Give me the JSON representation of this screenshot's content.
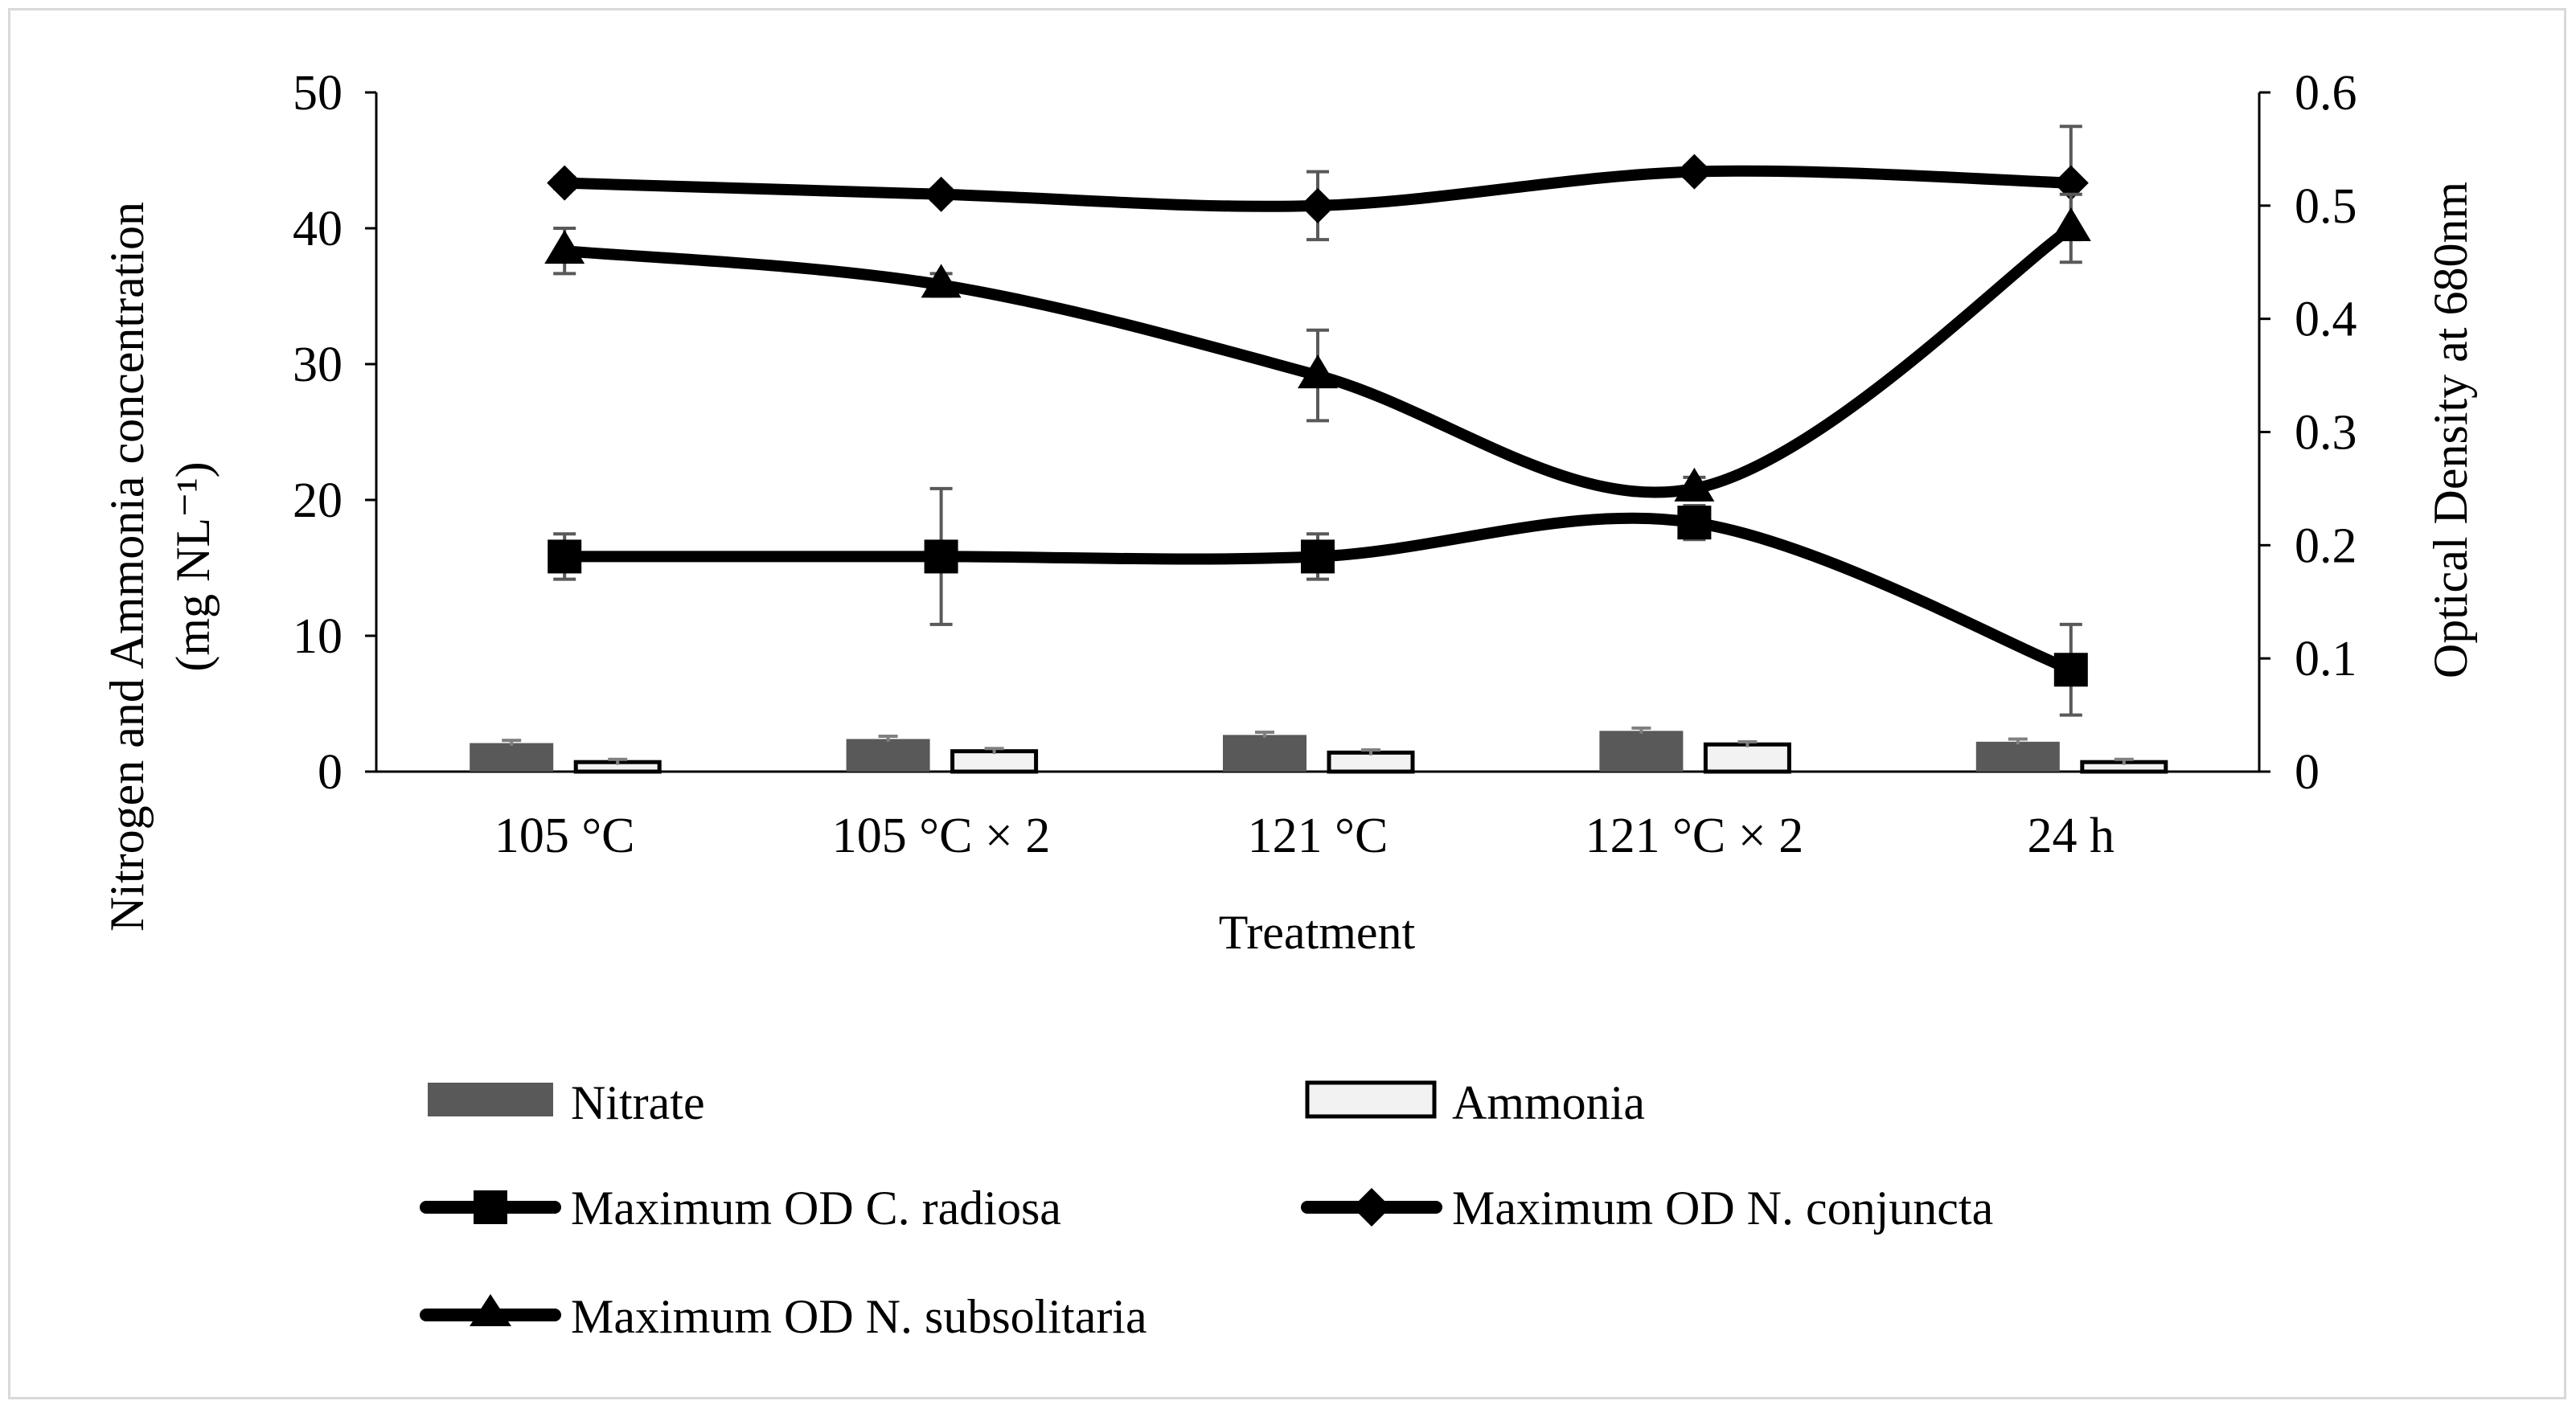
{
  "chart_data": {
    "type": "bar+line",
    "title": "",
    "xlabel": "Treatment",
    "ylabel_left_line1": "Nitrogen and Ammonia concentration",
    "ylabel_left_line2": "(mg NL⁻¹)",
    "ylabel_right": "Optical Density at 680nm",
    "categories": [
      "105 °C",
      "105 °C × 2",
      "121 °C",
      "121 °C × 2",
      "24 h"
    ],
    "y_left": {
      "min": 0,
      "max": 50,
      "ticks": [
        0,
        10,
        20,
        30,
        40,
        50
      ],
      "tick_labels": [
        "0",
        "10",
        "20",
        "30",
        "40",
        "50"
      ]
    },
    "y_right": {
      "min": 0,
      "max": 0.6,
      "ticks": [
        0,
        0.1,
        0.2,
        0.3,
        0.4,
        0.5,
        0.6
      ],
      "tick_labels": [
        "0",
        "0.1",
        "0.2",
        "0.3",
        "0.4",
        "0.5",
        "0.6"
      ]
    },
    "bars": [
      {
        "name": "Nitrate",
        "axis": "left",
        "color": "#595959",
        "border": "#595959",
        "values": [
          2.1,
          2.4,
          2.7,
          3.0,
          2.2
        ],
        "errors": [
          0.2,
          0.2,
          0.2,
          0.2,
          0.2
        ]
      },
      {
        "name": "Ammonia",
        "axis": "left",
        "color": "#f2f2f2",
        "border": "#000000",
        "values": [
          0.7,
          1.5,
          1.4,
          2.0,
          0.7
        ],
        "errors": [
          0.2,
          0.2,
          0.2,
          0.2,
          0.2
        ]
      }
    ],
    "lines": [
      {
        "name": "Maximum OD C. radiosa",
        "axis": "right",
        "marker": "square",
        "values": [
          0.19,
          0.19,
          0.19,
          0.22,
          0.09
        ],
        "errors": [
          0.02,
          0.06,
          0.02,
          0.015,
          0.04
        ]
      },
      {
        "name": "Maximum OD N. conjuncta",
        "axis": "right",
        "marker": "diamond",
        "values": [
          0.52,
          0.51,
          0.5,
          0.53,
          0.52
        ],
        "errors": [
          0.005,
          0.005,
          0.03,
          0.005,
          0.05
        ]
      },
      {
        "name": "Maximum OD N. subsolitaria",
        "axis": "right",
        "marker": "triangle",
        "values": [
          0.46,
          0.43,
          0.35,
          0.25,
          0.48
        ],
        "errors": [
          0.02,
          0.01,
          0.04,
          0.01,
          0.03
        ]
      }
    ],
    "legend_position": "bottom"
  }
}
